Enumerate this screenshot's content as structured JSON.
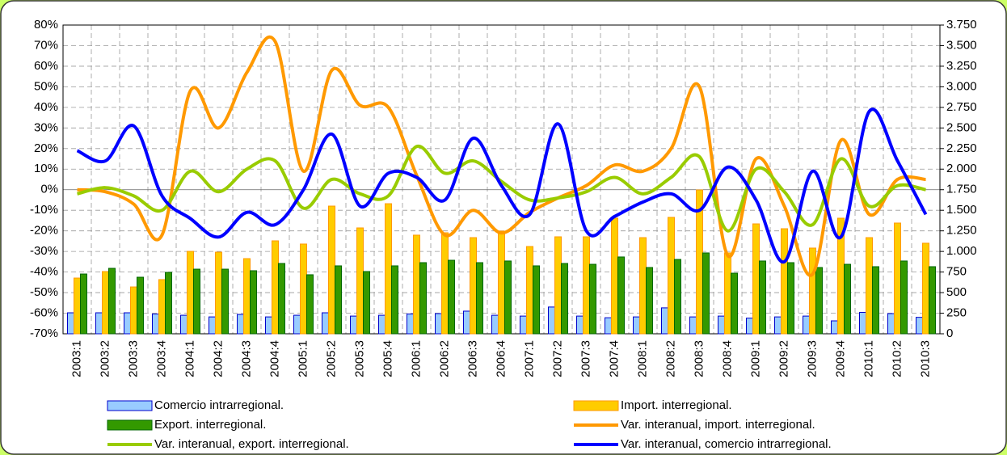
{
  "chart_data": {
    "type": "combo",
    "categories": [
      "2003:1",
      "2003:2",
      "2003:3",
      "2003:4",
      "2004:1",
      "2004:2",
      "2004:3",
      "2004:4",
      "2005:1",
      "2005:2",
      "2005:3",
      "2005:4",
      "2006:1",
      "2006:2",
      "2006:3",
      "2006:4",
      "2007:1",
      "2007:2",
      "2007:3",
      "2007:4",
      "2008:1",
      "2008:2",
      "2008:3",
      "2008:4",
      "2009:1",
      "2009:2",
      "2009:3",
      "2009:4",
      "2010:1",
      "2010:2",
      "2010:3"
    ],
    "series": [
      {
        "name": "Comercio intrarregional.",
        "type": "bar",
        "axis": "y2",
        "color": "#99ccff",
        "values": [
          255,
          255,
          255,
          240,
          225,
          205,
          235,
          205,
          225,
          255,
          215,
          225,
          240,
          245,
          275,
          225,
          215,
          325,
          215,
          195,
          205,
          315,
          205,
          215,
          190,
          205,
          215,
          157,
          260,
          245,
          200
        ]
      },
      {
        "name": "Import. interregional.",
        "type": "bar",
        "axis": "y2",
        "color": "#ffcc00",
        "values": [
          677,
          756,
          569,
          658,
          1001,
          991,
          913,
          1129,
          1090,
          1551,
          1286,
          1580,
          1198,
          1227,
          1168,
          1247,
          1060,
          1178,
          1178,
          1404,
          1168,
          1414,
          1747,
          982,
          1335,
          1276,
          1041,
          1404,
          1168,
          1345,
          1100
        ]
      },
      {
        "name": "Export. interregional.",
        "type": "bar",
        "axis": "y2",
        "color": "#339900",
        "values": [
          726,
          795,
          687,
          746,
          785,
          785,
          766,
          854,
          717,
          825,
          756,
          825,
          864,
          893,
          864,
          884,
          825,
          854,
          844,
          933,
          805,
          903,
          982,
          736,
          884,
          864,
          805,
          844,
          815,
          884,
          815
        ]
      },
      {
        "name": "Var. interanual, import. interregional.",
        "type": "line",
        "color": "#ff9900",
        "values": [
          0,
          -1,
          -7,
          -22,
          48,
          30,
          57,
          72,
          9,
          58,
          41,
          40,
          7,
          -22,
          -10,
          -21,
          -11,
          -4,
          2,
          12,
          9,
          20,
          50,
          -32,
          15,
          -8,
          -41,
          24,
          -12,
          5,
          5
        ]
      },
      {
        "name": "Var. interanual, export. interregional.",
        "type": "line",
        "color": "#99cc00",
        "values": [
          -2,
          1,
          -3,
          -10,
          9,
          -1,
          10,
          14,
          -9,
          5,
          -2,
          -3,
          21,
          8,
          14,
          4,
          -5,
          -4,
          -1,
          6,
          -2,
          6,
          16,
          -20,
          10,
          -1,
          -17,
          15,
          -8,
          2,
          0
        ]
      },
      {
        "name": "Var. interanual, comercio intrarregional.",
        "type": "line",
        "color": "#0000ff",
        "values": [
          19,
          14,
          31,
          -3,
          -14,
          -23,
          -11,
          -17,
          0,
          27,
          -8,
          8,
          6,
          -5,
          25,
          2,
          -12,
          32,
          -20,
          -13,
          -6,
          -2,
          -10,
          11,
          -5,
          -35,
          9,
          -23,
          38,
          14,
          -12
        ]
      }
    ],
    "ylim": [
      -70,
      80
    ],
    "yticks": [
      {
        "value": -70,
        "label": "-70%"
      },
      {
        "value": -60,
        "label": "-60%"
      },
      {
        "value": -50,
        "label": "-50%"
      },
      {
        "value": -40,
        "label": "-40%"
      },
      {
        "value": -30,
        "label": "-30%"
      },
      {
        "value": -20,
        "label": "-20%"
      },
      {
        "value": -10,
        "label": "-10%"
      },
      {
        "value": 0,
        "label": "0%"
      },
      {
        "value": 10,
        "label": "10%"
      },
      {
        "value": 20,
        "label": "20%"
      },
      {
        "value": 30,
        "label": "30%"
      },
      {
        "value": 40,
        "label": "40%"
      },
      {
        "value": 50,
        "label": "50%"
      },
      {
        "value": 60,
        "label": "60%"
      },
      {
        "value": 70,
        "label": "70%"
      },
      {
        "value": 80,
        "label": "80%"
      }
    ],
    "y2lim": [
      0,
      3750
    ],
    "y2ticks": [
      0,
      250,
      500,
      750,
      {
        "value": 1000,
        "label": "1.000"
      },
      {
        "value": 1250,
        "label": "1.250"
      },
      {
        "value": 1500,
        "label": "1.500"
      },
      {
        "value": 1750,
        "label": "1.750"
      },
      {
        "value": 2000,
        "label": "2.000"
      },
      {
        "value": 2250,
        "label": "2.250"
      },
      {
        "value": 2500,
        "label": "2.500"
      },
      {
        "value": 2750,
        "label": "2.750"
      },
      {
        "value": 3000,
        "label": "3.000"
      },
      {
        "value": 3250,
        "label": "3.250"
      },
      {
        "value": 3500,
        "label": "3.500"
      },
      {
        "value": 3750,
        "label": "3.750"
      }
    ],
    "grid": true
  }
}
